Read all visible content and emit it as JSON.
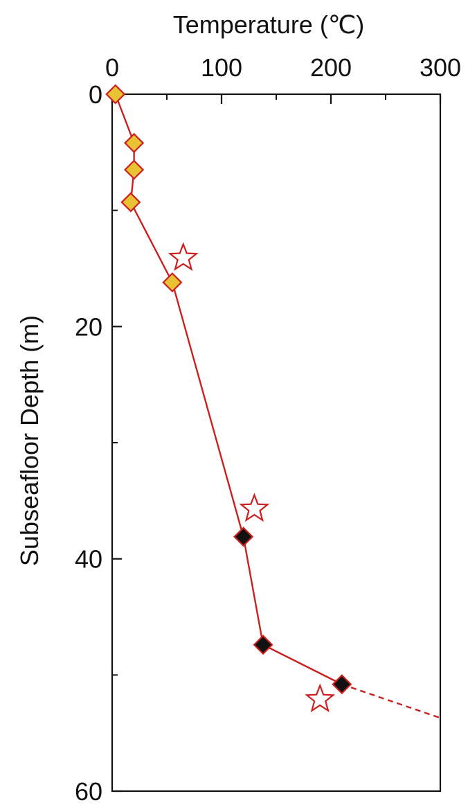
{
  "chart_data": {
    "type": "line",
    "xlabel": "Temperature (℃)",
    "ylabel": "Subseafloor Depth  (m)",
    "x_axis_position": "top",
    "y_axis_inverted": true,
    "xlim": [
      0,
      300
    ],
    "ylim": [
      0,
      60
    ],
    "x_ticks": [
      0,
      100,
      200,
      300
    ],
    "y_ticks": [
      0,
      20,
      40,
      60
    ],
    "grid": false,
    "legend": "none",
    "colors": {
      "line": "#cc1f1f",
      "yellow_marker_fill": "#e8c233",
      "black_marker_fill": "#111111",
      "star_stroke": "#cc1f1f",
      "axis": "#111111"
    },
    "series": [
      {
        "marker": "diamond-yellow",
        "connected": true,
        "points": [
          {
            "x": 3,
            "y": 0
          },
          {
            "x": 20,
            "y": 4.2
          },
          {
            "x": 20,
            "y": 6.5
          },
          {
            "x": 17,
            "y": 9.3
          },
          {
            "x": 55,
            "y": 16.2
          }
        ]
      },
      {
        "marker": "diamond-black",
        "connected": true,
        "points": [
          {
            "x": 120,
            "y": 38.1
          },
          {
            "x": 138,
            "y": 47.4
          },
          {
            "x": 210,
            "y": 50.8
          }
        ]
      },
      {
        "marker": "star-open",
        "connected": false,
        "points": [
          {
            "x": 65,
            "y": 14.1
          },
          {
            "x": 130,
            "y": 35.7
          },
          {
            "x": 190,
            "y": 52.1
          }
        ]
      }
    ],
    "extrapolation": {
      "style": "dashed",
      "from": {
        "x": 210,
        "y": 50.8
      },
      "to": {
        "x": 300,
        "y": 53.7
      }
    }
  }
}
